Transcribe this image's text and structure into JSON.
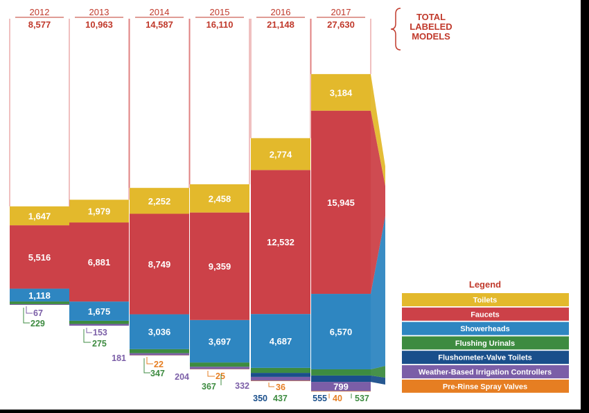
{
  "chart_data": {
    "type": "bar",
    "stacked": true,
    "categories": [
      "2012",
      "2013",
      "2014",
      "2015",
      "2016",
      "2017"
    ],
    "totals": [
      "8,577",
      "10,963",
      "14,587",
      "16,110",
      "21,148",
      "27,630"
    ],
    "total_annotation": [
      "TOTAL",
      "LABELED",
      "MODELS"
    ],
    "series": [
      {
        "name": "Pre-Rinse Spray Valves",
        "color": "#e67e22",
        "values": [
          0,
          0,
          22,
          25,
          36,
          40
        ],
        "labels": [
          "",
          "",
          "22",
          "25",
          "36",
          "40"
        ]
      },
      {
        "name": "Weather-Based Irrigation Controllers",
        "color": "#7b5ea7",
        "values": [
          67,
          153,
          181,
          204,
          332,
          799
        ],
        "labels": [
          "67",
          "153",
          "181",
          "204",
          "332",
          "799"
        ]
      },
      {
        "name": "Flushometer-Valve Toilets",
        "color": "#1a4f8b",
        "values": [
          0,
          0,
          0,
          0,
          350,
          555
        ],
        "labels": [
          "",
          "",
          "",
          "",
          "350",
          "555"
        ]
      },
      {
        "name": "Flushing Urinals",
        "color": "#3d8b40",
        "values": [
          229,
          275,
          347,
          367,
          437,
          537
        ],
        "labels": [
          "229",
          "275",
          "347",
          "367",
          "437",
          "537"
        ]
      },
      {
        "name": "Showerheads",
        "color": "#2e86c1",
        "values": [
          1118,
          1675,
          3036,
          3697,
          4687,
          6570
        ],
        "labels": [
          "1,118",
          "1,675",
          "3,036",
          "3,697",
          "4,687",
          "6,570"
        ]
      },
      {
        "name": "Faucets",
        "color": "#cc4148",
        "values": [
          5516,
          6881,
          8749,
          9359,
          12532,
          15945
        ],
        "labels": [
          "5,516",
          "6,881",
          "8,749",
          "9,359",
          "12,532",
          "15,945"
        ]
      },
      {
        "name": "Toilets",
        "color": "#e3b92c",
        "values": [
          1647,
          1979,
          2252,
          2458,
          2774,
          3184
        ],
        "labels": [
          "1,647",
          "1,979",
          "2,252",
          "2,458",
          "2,774",
          "3,184"
        ]
      }
    ],
    "legend": {
      "title": "Legend",
      "position": "bottom-right",
      "items": [
        {
          "label": "Toilets",
          "color": "#e3b92c"
        },
        {
          "label": "Faucets",
          "color": "#cc4148"
        },
        {
          "label": "Showerheads",
          "color": "#2e86c1"
        },
        {
          "label": "Flushing Urinals",
          "color": "#3d8b40"
        },
        {
          "label": "Flushometer-Valve Toilets",
          "color": "#1a4f8b"
        },
        {
          "label": "Weather-Based Irrigation Controllers",
          "color": "#7b5ea7"
        },
        {
          "label": "Pre-Rinse Spray Valves",
          "color": "#e67e22"
        }
      ]
    },
    "ylim": [
      0,
      27630
    ]
  }
}
